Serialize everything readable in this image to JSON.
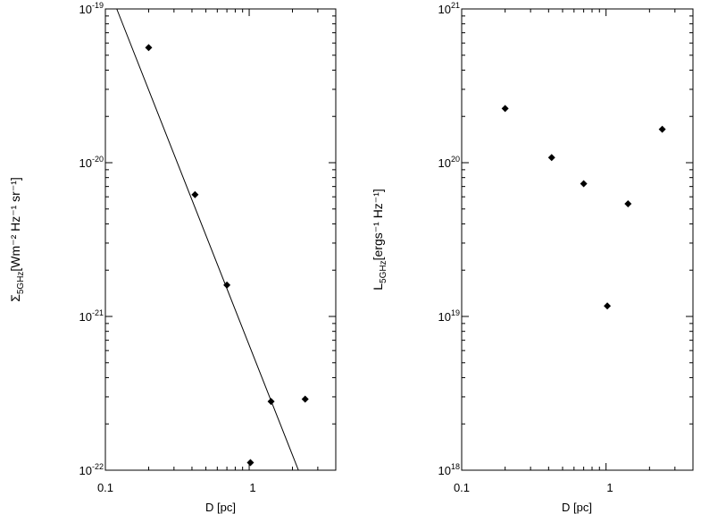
{
  "chart_data": [
    {
      "type": "scatter",
      "xlabel": "D [pc]",
      "ylabel_base": "Σ",
      "ylabel_sub": "5GHz",
      "ylabel_rest": "[Wm⁻² Hz⁻¹ sr⁻¹]",
      "xscale": "log",
      "yscale": "log",
      "xlim": [
        0.1,
        4
      ],
      "ylim": [
        1e-22,
        1e-19
      ],
      "x_ticks": [
        "0.1",
        "1"
      ],
      "y_ticks": [
        {
          "base": "10",
          "exp": "-22"
        },
        {
          "base": "10",
          "exp": "-21"
        },
        {
          "base": "10",
          "exp": "-20"
        },
        {
          "base": "10",
          "exp": "-19"
        }
      ],
      "points": [
        {
          "x": 0.2,
          "y": 5.6e-20
        },
        {
          "x": 0.42,
          "y": 6.2e-21
        },
        {
          "x": 0.7,
          "y": 1.6e-21
        },
        {
          "x": 1.02,
          "y": 1.12e-22
        },
        {
          "x": 1.42,
          "y": 2.8e-22
        },
        {
          "x": 2.45,
          "y": 2.9e-22
        }
      ],
      "fit_line": [
        {
          "x": 0.12,
          "y": 1e-19
        },
        {
          "x": 2.2,
          "y": 1e-22
        }
      ]
    },
    {
      "type": "scatter",
      "xlabel": "D [pc]",
      "ylabel_base": "L",
      "ylabel_sub": "5GHz",
      "ylabel_rest": "[ergs⁻¹ Hz⁻¹]",
      "xscale": "log",
      "yscale": "log",
      "xlim": [
        0.1,
        4
      ],
      "ylim": [
        1e+18,
        1e+21
      ],
      "x_ticks": [
        "0.1",
        "1"
      ],
      "y_ticks": [
        {
          "base": "10",
          "exp": "18"
        },
        {
          "base": "10",
          "exp": "19"
        },
        {
          "base": "10",
          "exp": "20"
        },
        {
          "base": "10",
          "exp": "21"
        }
      ],
      "points": [
        {
          "x": 0.2,
          "y": 2.25e+20
        },
        {
          "x": 0.42,
          "y": 1.08e+20
        },
        {
          "x": 0.7,
          "y": 7.3e+19
        },
        {
          "x": 1.02,
          "y": 1.17e+19
        },
        {
          "x": 1.42,
          "y": 5.4e+19
        },
        {
          "x": 2.45,
          "y": 1.65e+20
        }
      ]
    }
  ]
}
